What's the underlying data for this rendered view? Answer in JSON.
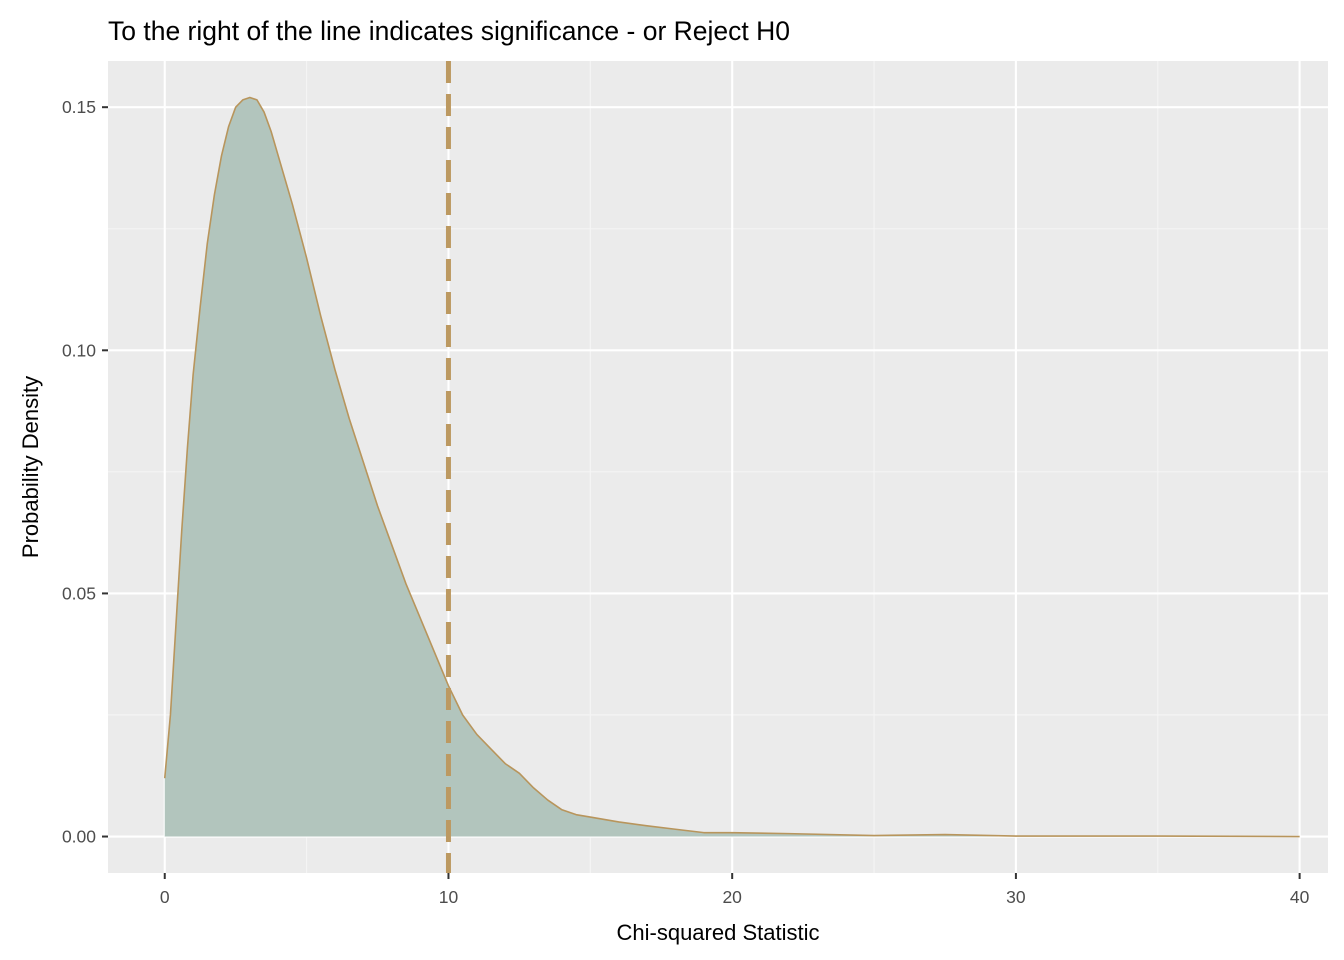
{
  "chart_data": {
    "type": "area",
    "title": "To the right of the line indicates significance - or Reject H0",
    "xlabel": "Chi-squared Statistic",
    "ylabel": "Probability Density",
    "xlim": [
      -2,
      41
    ],
    "ylim": [
      -0.0075,
      0.1595
    ],
    "x_ticks": [
      0,
      10,
      20,
      30,
      40
    ],
    "x_tick_labels": [
      "0",
      "10",
      "20",
      "30",
      "40"
    ],
    "y_ticks": [
      0.0,
      0.05,
      0.1,
      0.15
    ],
    "y_tick_labels": [
      "0.00",
      "0.05",
      "0.10",
      "0.15"
    ],
    "grid": true,
    "legend": "none",
    "vline": {
      "x": 10,
      "style": "dashed"
    },
    "series": [
      {
        "x": [
          0,
          0.2,
          0.4,
          0.6,
          0.8,
          1,
          1.25,
          1.5,
          1.75,
          2,
          2.25,
          2.5,
          2.75,
          3,
          3.25,
          3.5,
          3.75,
          4,
          4.5,
          5,
          5.5,
          6,
          6.5,
          7,
          7.5,
          8,
          8.5,
          9,
          9.5,
          10,
          10.5,
          11,
          11.5,
          12,
          12.5,
          13,
          13.5,
          14,
          14.5,
          15,
          16,
          17,
          18,
          19,
          20,
          22,
          25,
          27.5,
          30,
          35,
          40
        ],
        "y": [
          0.012,
          0.025,
          0.044,
          0.063,
          0.08,
          0.095,
          0.109,
          0.122,
          0.132,
          0.14,
          0.146,
          0.15,
          0.1515,
          0.152,
          0.1515,
          0.149,
          0.145,
          0.14,
          0.13,
          0.119,
          0.107,
          0.096,
          0.086,
          0.077,
          0.068,
          0.06,
          0.052,
          0.045,
          0.038,
          0.031,
          0.025,
          0.021,
          0.018,
          0.015,
          0.013,
          0.01,
          0.0075,
          0.0055,
          0.0045,
          0.004,
          0.003,
          0.0022,
          0.0015,
          0.0008,
          0.0008,
          0.0006,
          0.0002,
          0.0004,
          0.0001,
          0.0001,
          0.0
        ]
      }
    ]
  },
  "colors": {
    "panel_background": "#EBEBEB",
    "grid_major": "#FFFFFF",
    "grid_minor": "#F5F5F5",
    "area_fill": "#B2C5BD",
    "area_line": "#B8955C",
    "vline": "#BC9961",
    "tick_text": "#4D4D4D",
    "tick_mark": "#333333",
    "title_text": "#000000"
  }
}
